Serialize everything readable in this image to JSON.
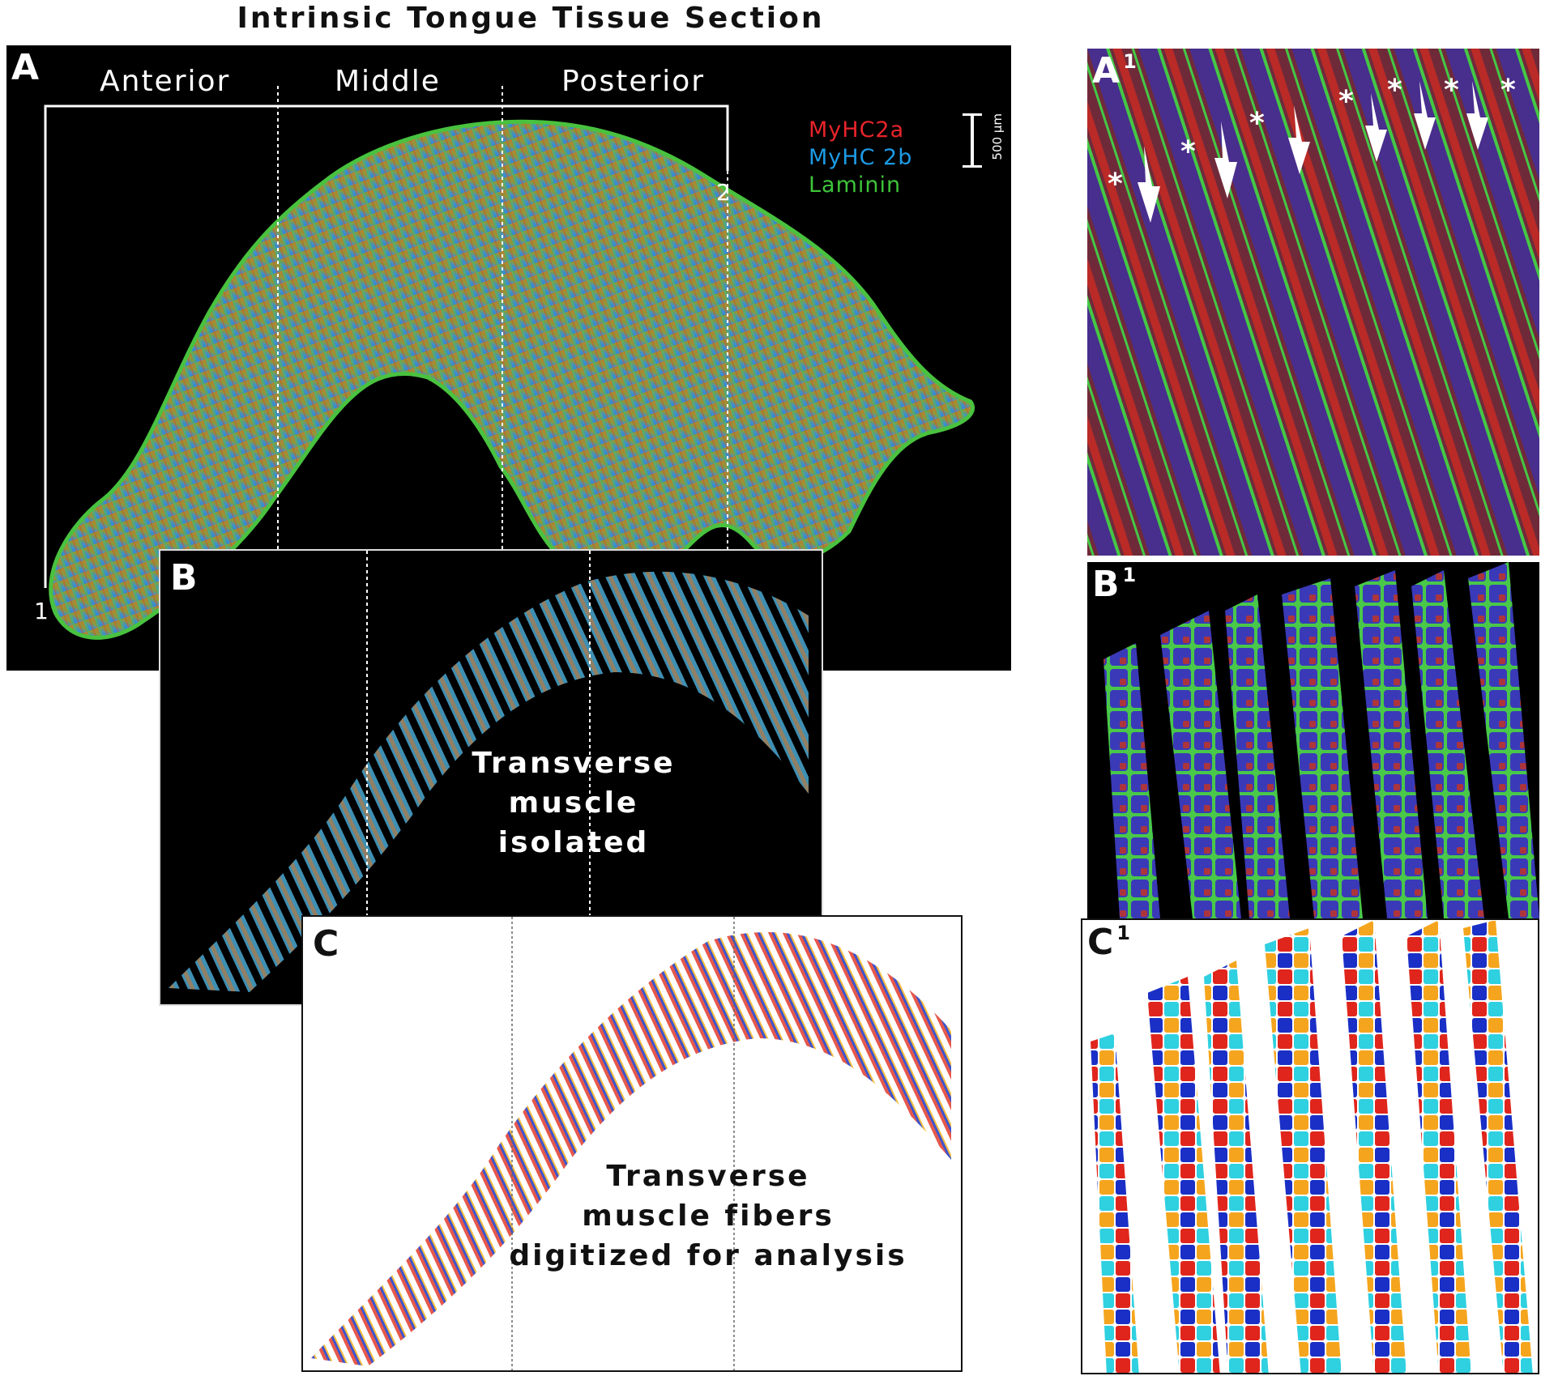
{
  "figure_title": "Intrinsic Tongue Tissue Section",
  "panels": {
    "A": {
      "letter": "A",
      "regions": [
        "Anterior",
        "Middle",
        "Posterior"
      ],
      "line_markers": [
        "1",
        "2"
      ],
      "scale_bar_label": "500 µm",
      "legend": [
        {
          "label": "MyHC2a",
          "color": "#e8242a"
        },
        {
          "label": "MyHC 2b",
          "color": "#1c9be6"
        },
        {
          "label": "Laminin",
          "color": "#3ec43a"
        }
      ]
    },
    "B": {
      "letter": "B",
      "caption": [
        "Transverse",
        "muscle",
        "isolated"
      ]
    },
    "C": {
      "letter": "C",
      "caption": [
        "Transverse",
        "muscle fibers",
        "digitized for analysis"
      ]
    },
    "A1": {
      "letter": "A",
      "superscript": "1",
      "asterisk": "*"
    },
    "B1": {
      "letter": "B",
      "superscript": "1"
    },
    "C1": {
      "letter": "C",
      "superscript": "1"
    }
  }
}
